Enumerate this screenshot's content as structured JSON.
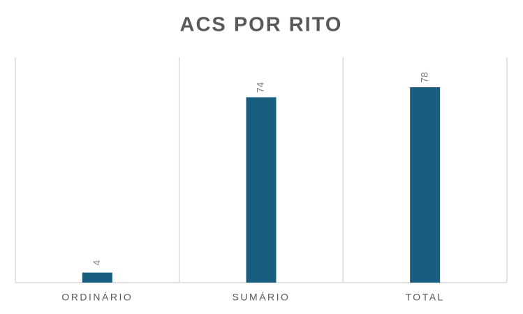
{
  "chart_data": {
    "type": "bar",
    "title": "ACS POR RITO",
    "categories": [
      "ORDINÁRIO",
      "SUMÁRIO",
      "TOTAL"
    ],
    "values": [
      4,
      74,
      78
    ],
    "color": "#175e7f"
  }
}
